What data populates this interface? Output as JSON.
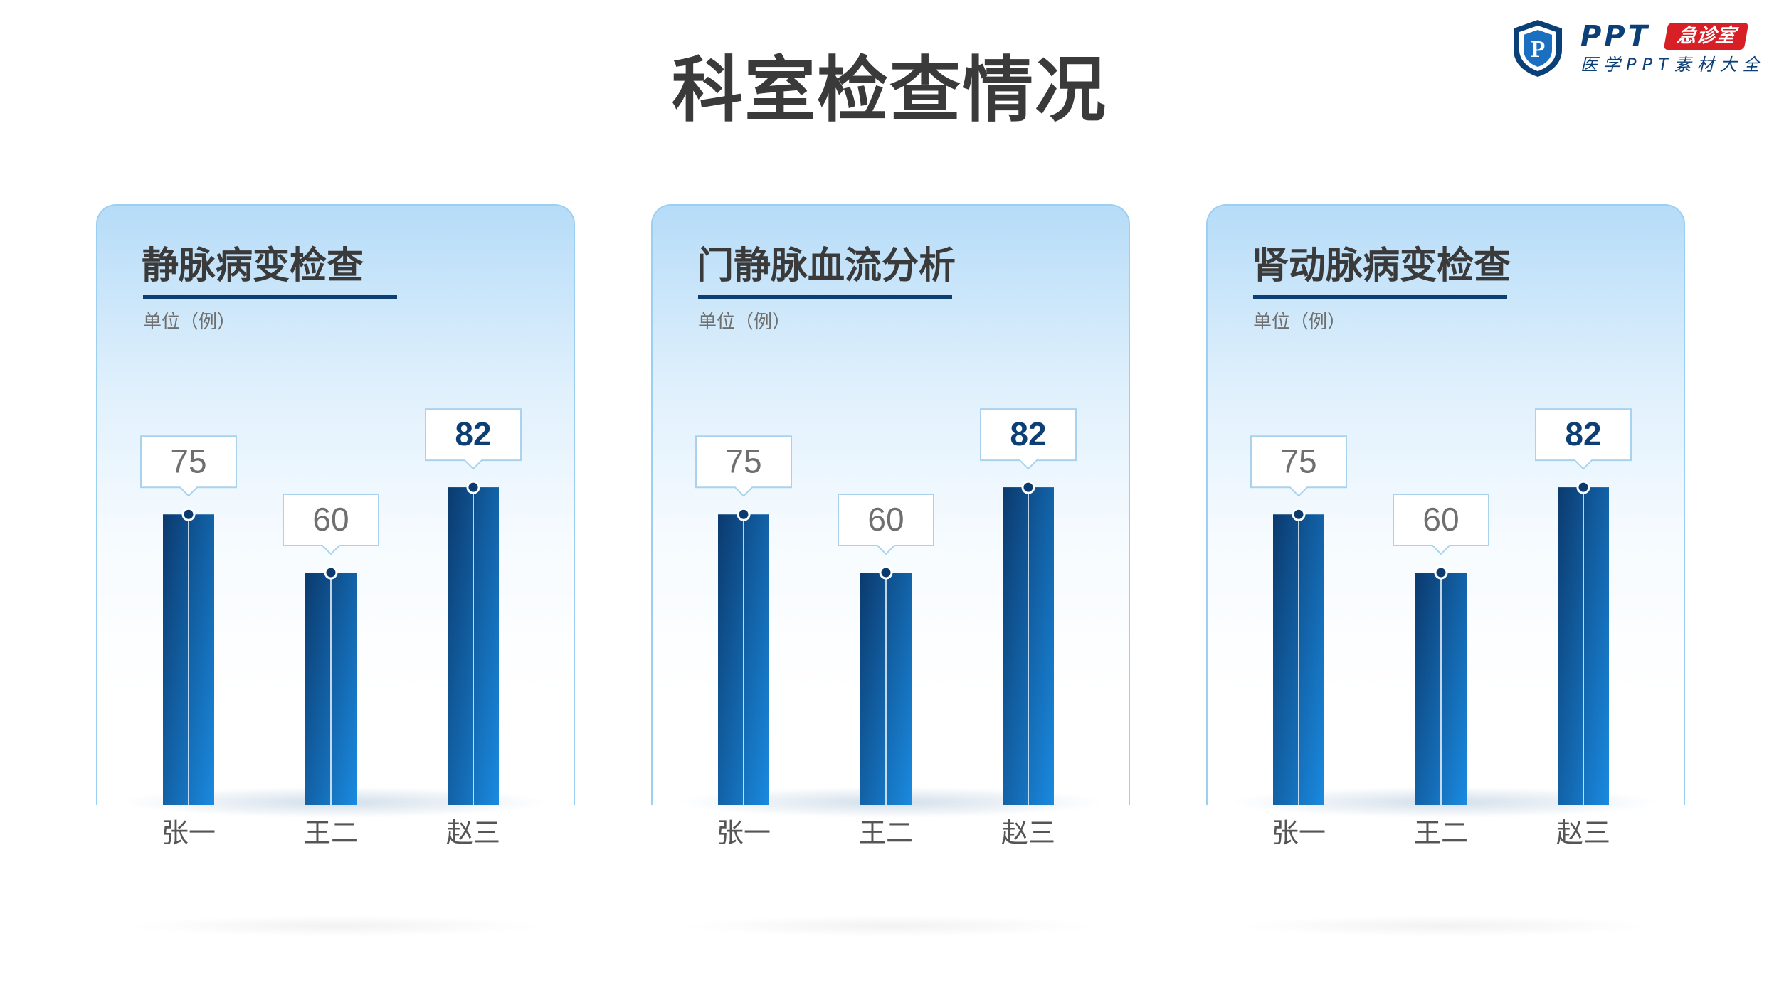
{
  "title": "科室检查情况",
  "logo": {
    "brand": "PPT",
    "badge": "急诊室",
    "subtitle": "医学PPT素材大全",
    "shield_letter": "P"
  },
  "colors": {
    "bar_dark": "#0b3a6e",
    "bar_light": "#1a8ae0",
    "underline": "#0d3f74",
    "highlight_value": "#0d3f74",
    "normal_value": "#6f6f6f"
  },
  "chart_data": [
    {
      "type": "bar",
      "title": "静脉病变检查",
      "unit_label": "单位（例）",
      "categories": [
        "张一",
        "王二",
        "赵三"
      ],
      "values": [
        75,
        60,
        82
      ],
      "highlight_index": 2,
      "ylim": [
        0,
        100
      ],
      "grid": false,
      "legend": "none"
    },
    {
      "type": "bar",
      "title": "门静脉血流分析",
      "unit_label": "单位（例）",
      "categories": [
        "张一",
        "王二",
        "赵三"
      ],
      "values": [
        75,
        60,
        82
      ],
      "highlight_index": 2,
      "ylim": [
        0,
        100
      ],
      "grid": false,
      "legend": "none"
    },
    {
      "type": "bar",
      "title": "肾动脉病变检查",
      "unit_label": "单位（例）",
      "categories": [
        "张一",
        "王二",
        "赵三"
      ],
      "values": [
        75,
        60,
        82
      ],
      "highlight_index": 2,
      "ylim": [
        0,
        100
      ],
      "grid": false,
      "legend": "none"
    }
  ]
}
